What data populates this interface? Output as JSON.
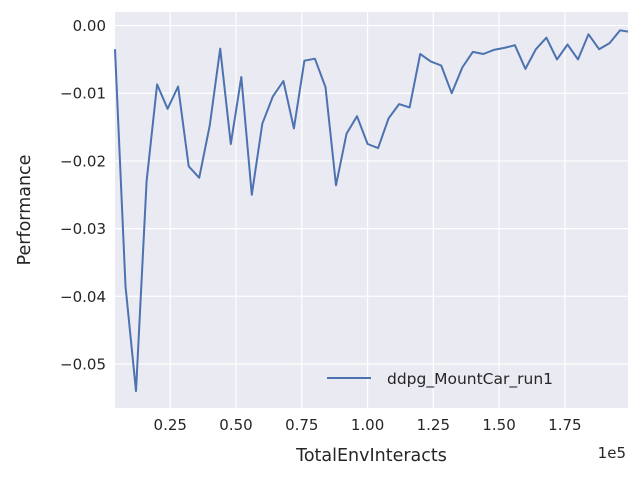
{
  "chart_data": {
    "type": "line",
    "title": "",
    "xlabel": "TotalEnvInteracts",
    "ylabel": "Performance",
    "x_offset_label": "1e5",
    "xlim": [
      4000,
      199000
    ],
    "ylim": [
      -0.0565,
      0.002
    ],
    "x_ticks": [
      25000,
      50000,
      75000,
      100000,
      125000,
      150000,
      175000
    ],
    "x_tick_labels": [
      "0.25",
      "0.50",
      "0.75",
      "1.00",
      "1.25",
      "1.50",
      "1.75"
    ],
    "y_ticks": [
      0.0,
      -0.01,
      -0.02,
      -0.03,
      -0.04,
      -0.05
    ],
    "y_tick_labels": [
      "0.00",
      "−0.01",
      "−0.02",
      "−0.03",
      "−0.04",
      "−0.05"
    ],
    "grid": true,
    "legend_position": "lower-right",
    "background_color": "#EAEAF2",
    "grid_color": "#FFFFFF",
    "series": [
      {
        "name": "ddpg_MountCar_run1",
        "color": "#4C72B0",
        "x": [
          4000,
          8000,
          12000,
          16000,
          20000,
          24000,
          28000,
          32000,
          36000,
          40000,
          44000,
          48000,
          52000,
          56000,
          60000,
          64000,
          68000,
          72000,
          76000,
          80000,
          84000,
          88000,
          92000,
          96000,
          100000,
          104000,
          108000,
          112000,
          116000,
          120000,
          124000,
          128000,
          132000,
          136000,
          140000,
          144000,
          148000,
          152000,
          156000,
          160000,
          164000,
          168000,
          172000,
          176000,
          180000,
          184000,
          188000,
          192000,
          196000,
          199000
        ],
        "y": [
          -0.0035,
          -0.0385,
          -0.054,
          -0.023,
          -0.0087,
          -0.0123,
          -0.009,
          -0.0208,
          -0.0225,
          -0.0148,
          -0.0034,
          -0.0175,
          -0.0076,
          -0.025,
          -0.0145,
          -0.0105,
          -0.0082,
          -0.0152,
          -0.0052,
          -0.0049,
          -0.0091,
          -0.0236,
          -0.016,
          -0.0134,
          -0.0175,
          -0.0181,
          -0.0137,
          -0.0116,
          -0.0121,
          -0.0042,
          -0.0053,
          -0.0059,
          -0.01,
          -0.0062,
          -0.0039,
          -0.0042,
          -0.0036,
          -0.0033,
          -0.0029,
          -0.0064,
          -0.0035,
          -0.0018,
          -0.005,
          -0.0028,
          -0.005,
          -0.0013,
          -0.0035,
          -0.0026,
          -0.0007,
          -0.0009
        ]
      }
    ]
  }
}
